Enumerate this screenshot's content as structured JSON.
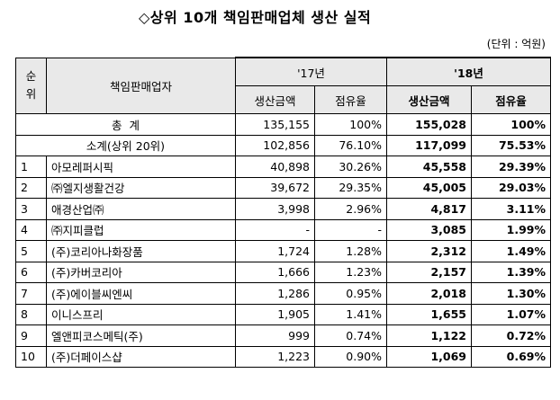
{
  "title": "◇상위 10개 책임판매업체 생산 실적",
  "unit": "(단위 : 억원)",
  "header": {
    "rank": "순\n위",
    "rank_top": "순",
    "rank_bottom": "위",
    "company": "책임판매업자",
    "y17": "'17년",
    "y18": "'18년",
    "prod": "생산금액",
    "share": "점유율"
  },
  "totals": [
    {
      "label": "총  계",
      "p17": "135,155",
      "s17": "100%",
      "p18": "155,028",
      "s18": "100%"
    },
    {
      "label": "소계(상위 20위)",
      "p17": "102,856",
      "s17": "76.10%",
      "p18": "117,099",
      "s18": "75.53%"
    }
  ],
  "rows": [
    {
      "rank": "1",
      "name": "아모레퍼시픽",
      "p17": "40,898",
      "s17": "30.26%",
      "p18": "45,558",
      "s18": "29.39%"
    },
    {
      "rank": "2",
      "name": "㈜엘지생활건강",
      "p17": "39,672",
      "s17": "29.35%",
      "p18": "45,005",
      "s18": "29.03%"
    },
    {
      "rank": "3",
      "name": "애경산업㈜",
      "p17": "3,998",
      "s17": "2.96%",
      "p18": "4,817",
      "s18": "3.11%"
    },
    {
      "rank": "4",
      "name": "㈜지피클럽",
      "p17": "-",
      "s17": "-",
      "p18": "3,085",
      "s18": "1.99%"
    },
    {
      "rank": "5",
      "name": "(주)코리아나화장품",
      "p17": "1,724",
      "s17": "1.28%",
      "p18": "2,312",
      "s18": "1.49%"
    },
    {
      "rank": "6",
      "name": "(주)카버코리아",
      "p17": "1,666",
      "s17": "1.23%",
      "p18": "2,157",
      "s18": "1.39%"
    },
    {
      "rank": "7",
      "name": "(주)에이블씨엔씨",
      "p17": "1,286",
      "s17": "0.95%",
      "p18": "2,018",
      "s18": "1.30%"
    },
    {
      "rank": "8",
      "name": "이니스프리",
      "p17": "1,905",
      "s17": "1.41%",
      "p18": "1,655",
      "s18": "1.07%"
    },
    {
      "rank": "9",
      "name": "엘앤피코스메틱(주)",
      "p17": "999",
      "s17": "0.74%",
      "p18": "1,122",
      "s18": "0.72%"
    },
    {
      "rank": "10",
      "name": "(주)더페이스샵",
      "p17": "1,223",
      "s17": "0.90%",
      "p18": "1,069",
      "s18": "0.69%"
    }
  ]
}
